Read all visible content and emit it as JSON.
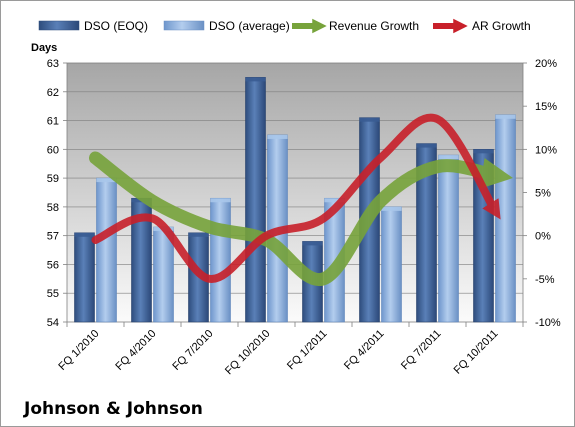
{
  "company": "Johnson & Johnson",
  "colors": {
    "dso_eoq": "#4a6fa5",
    "dso_average": "#8db3e2",
    "revenue_growth": "#77a33b",
    "ar_growth": "#c8202a",
    "plot_top": "#a6a6a6",
    "plot_bottom": "#fbfbfb"
  },
  "chart_data": {
    "type": "bar",
    "ylabel": "Days",
    "ylim": [
      54,
      63
    ],
    "yticks": [
      "54",
      "55",
      "56",
      "57",
      "58",
      "59",
      "60",
      "61",
      "62",
      "63"
    ],
    "y2lim": [
      -10,
      20
    ],
    "y2ticks": [
      "-10%",
      "-5%",
      "0%",
      "5%",
      "10%",
      "15%",
      "20%"
    ],
    "grid": true,
    "legend_position": "top",
    "categories": [
      "FQ 1/2010",
      "FQ 4/2010",
      "FQ 7/2010",
      "FQ 10/2010",
      "FQ 1/2011",
      "FQ 4/2011",
      "FQ 7/2011",
      "FQ 10/2011"
    ],
    "series": [
      {
        "name": "DSO (EOQ)",
        "type": "bar",
        "axis": "left",
        "values": [
          57.1,
          58.3,
          57.1,
          62.5,
          56.8,
          61.1,
          60.2,
          60.0
        ]
      },
      {
        "name": "DSO (average)",
        "type": "bar",
        "axis": "left",
        "values": [
          59.0,
          57.3,
          58.3,
          60.5,
          58.3,
          58.0,
          59.8,
          61.2
        ]
      },
      {
        "name": "Revenue Growth",
        "type": "line",
        "axis": "right",
        "unit": "%",
        "values": [
          9,
          4,
          1,
          -0.5,
          -5,
          4,
          8,
          7
        ]
      },
      {
        "name": "AR Growth",
        "type": "line",
        "axis": "right",
        "unit": "%",
        "values": [
          -0.5,
          2,
          -5,
          0,
          2,
          9,
          13.5,
          3
        ]
      }
    ]
  }
}
